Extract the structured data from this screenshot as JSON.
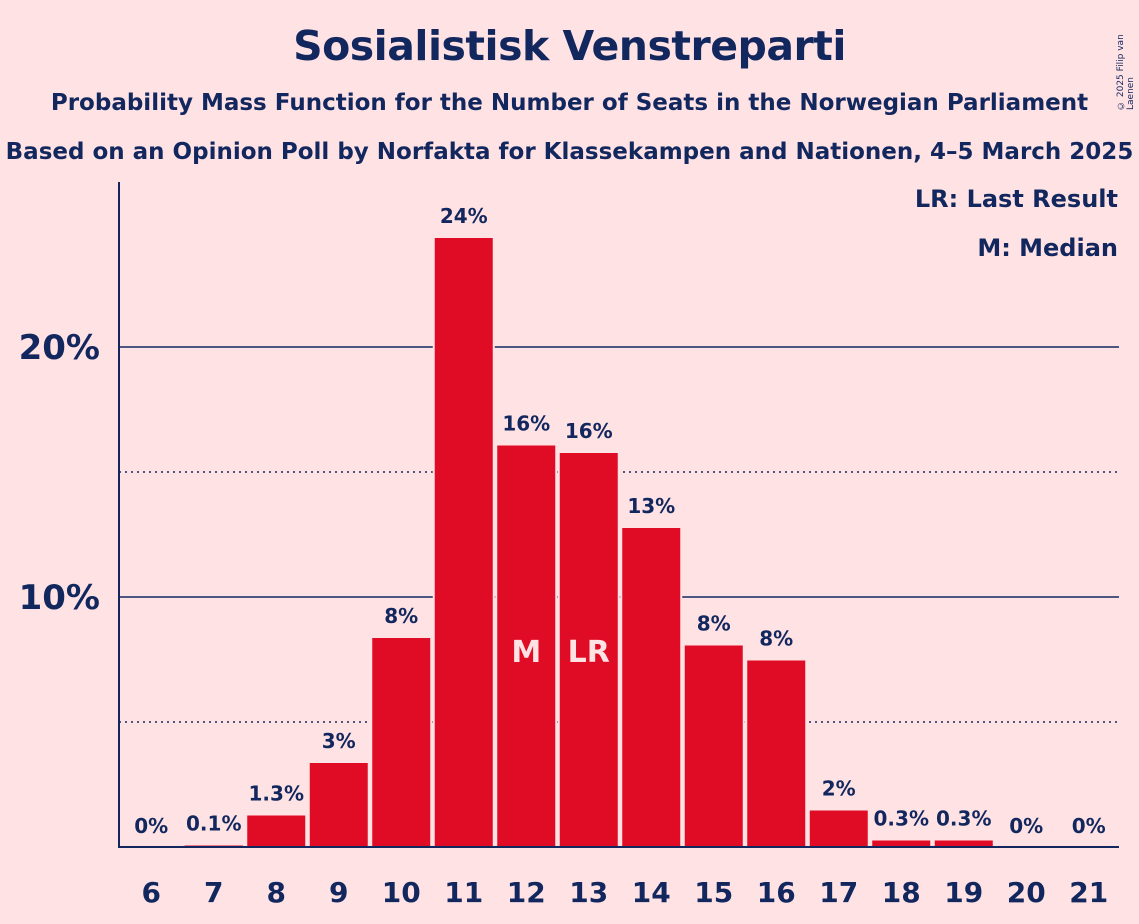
{
  "chart_data": {
    "type": "bar",
    "title": "Sosialistisk Venstreparti",
    "subtitle": "Probability Mass Function for the Number of Seats in the Norwegian Parliament",
    "subtitle2": "Based on an Opinion Poll by Norfakta for Klassekampen and Nationen, 4–5 March 2025",
    "copyright": "© 2025 Filip van Laenen",
    "legend": [
      "LR: Last Result",
      "M: Median"
    ],
    "legend_position": "top-right",
    "categories": [
      "6",
      "7",
      "8",
      "9",
      "10",
      "11",
      "12",
      "13",
      "14",
      "15",
      "16",
      "17",
      "18",
      "19",
      "20",
      "21"
    ],
    "values": [
      0,
      0.1,
      1.3,
      3.4,
      8.4,
      24.4,
      16.1,
      15.8,
      12.8,
      8.1,
      7.5,
      1.5,
      0.3,
      0.3,
      0,
      0
    ],
    "data_labels": [
      "0%",
      "0.1%",
      "1.3%",
      "3%",
      "8%",
      "24%",
      "16%",
      "16%",
      "13%",
      "8%",
      "8%",
      "2%",
      "0.3%",
      "0.3%",
      "0%",
      "0%"
    ],
    "markers": {
      "12": "M",
      "13": "LR"
    },
    "ylim": [
      0,
      26.5
    ],
    "yticks": [
      {
        "value": 10,
        "label": "10%"
      },
      {
        "value": 20,
        "label": "20%"
      }
    ],
    "minor_gridlines": [
      5,
      15
    ],
    "grid": true,
    "xlabel": "",
    "ylabel": ""
  },
  "colors": {
    "background": "#ffe2e4",
    "bar": "#e00b25",
    "text": "#12275e"
  }
}
